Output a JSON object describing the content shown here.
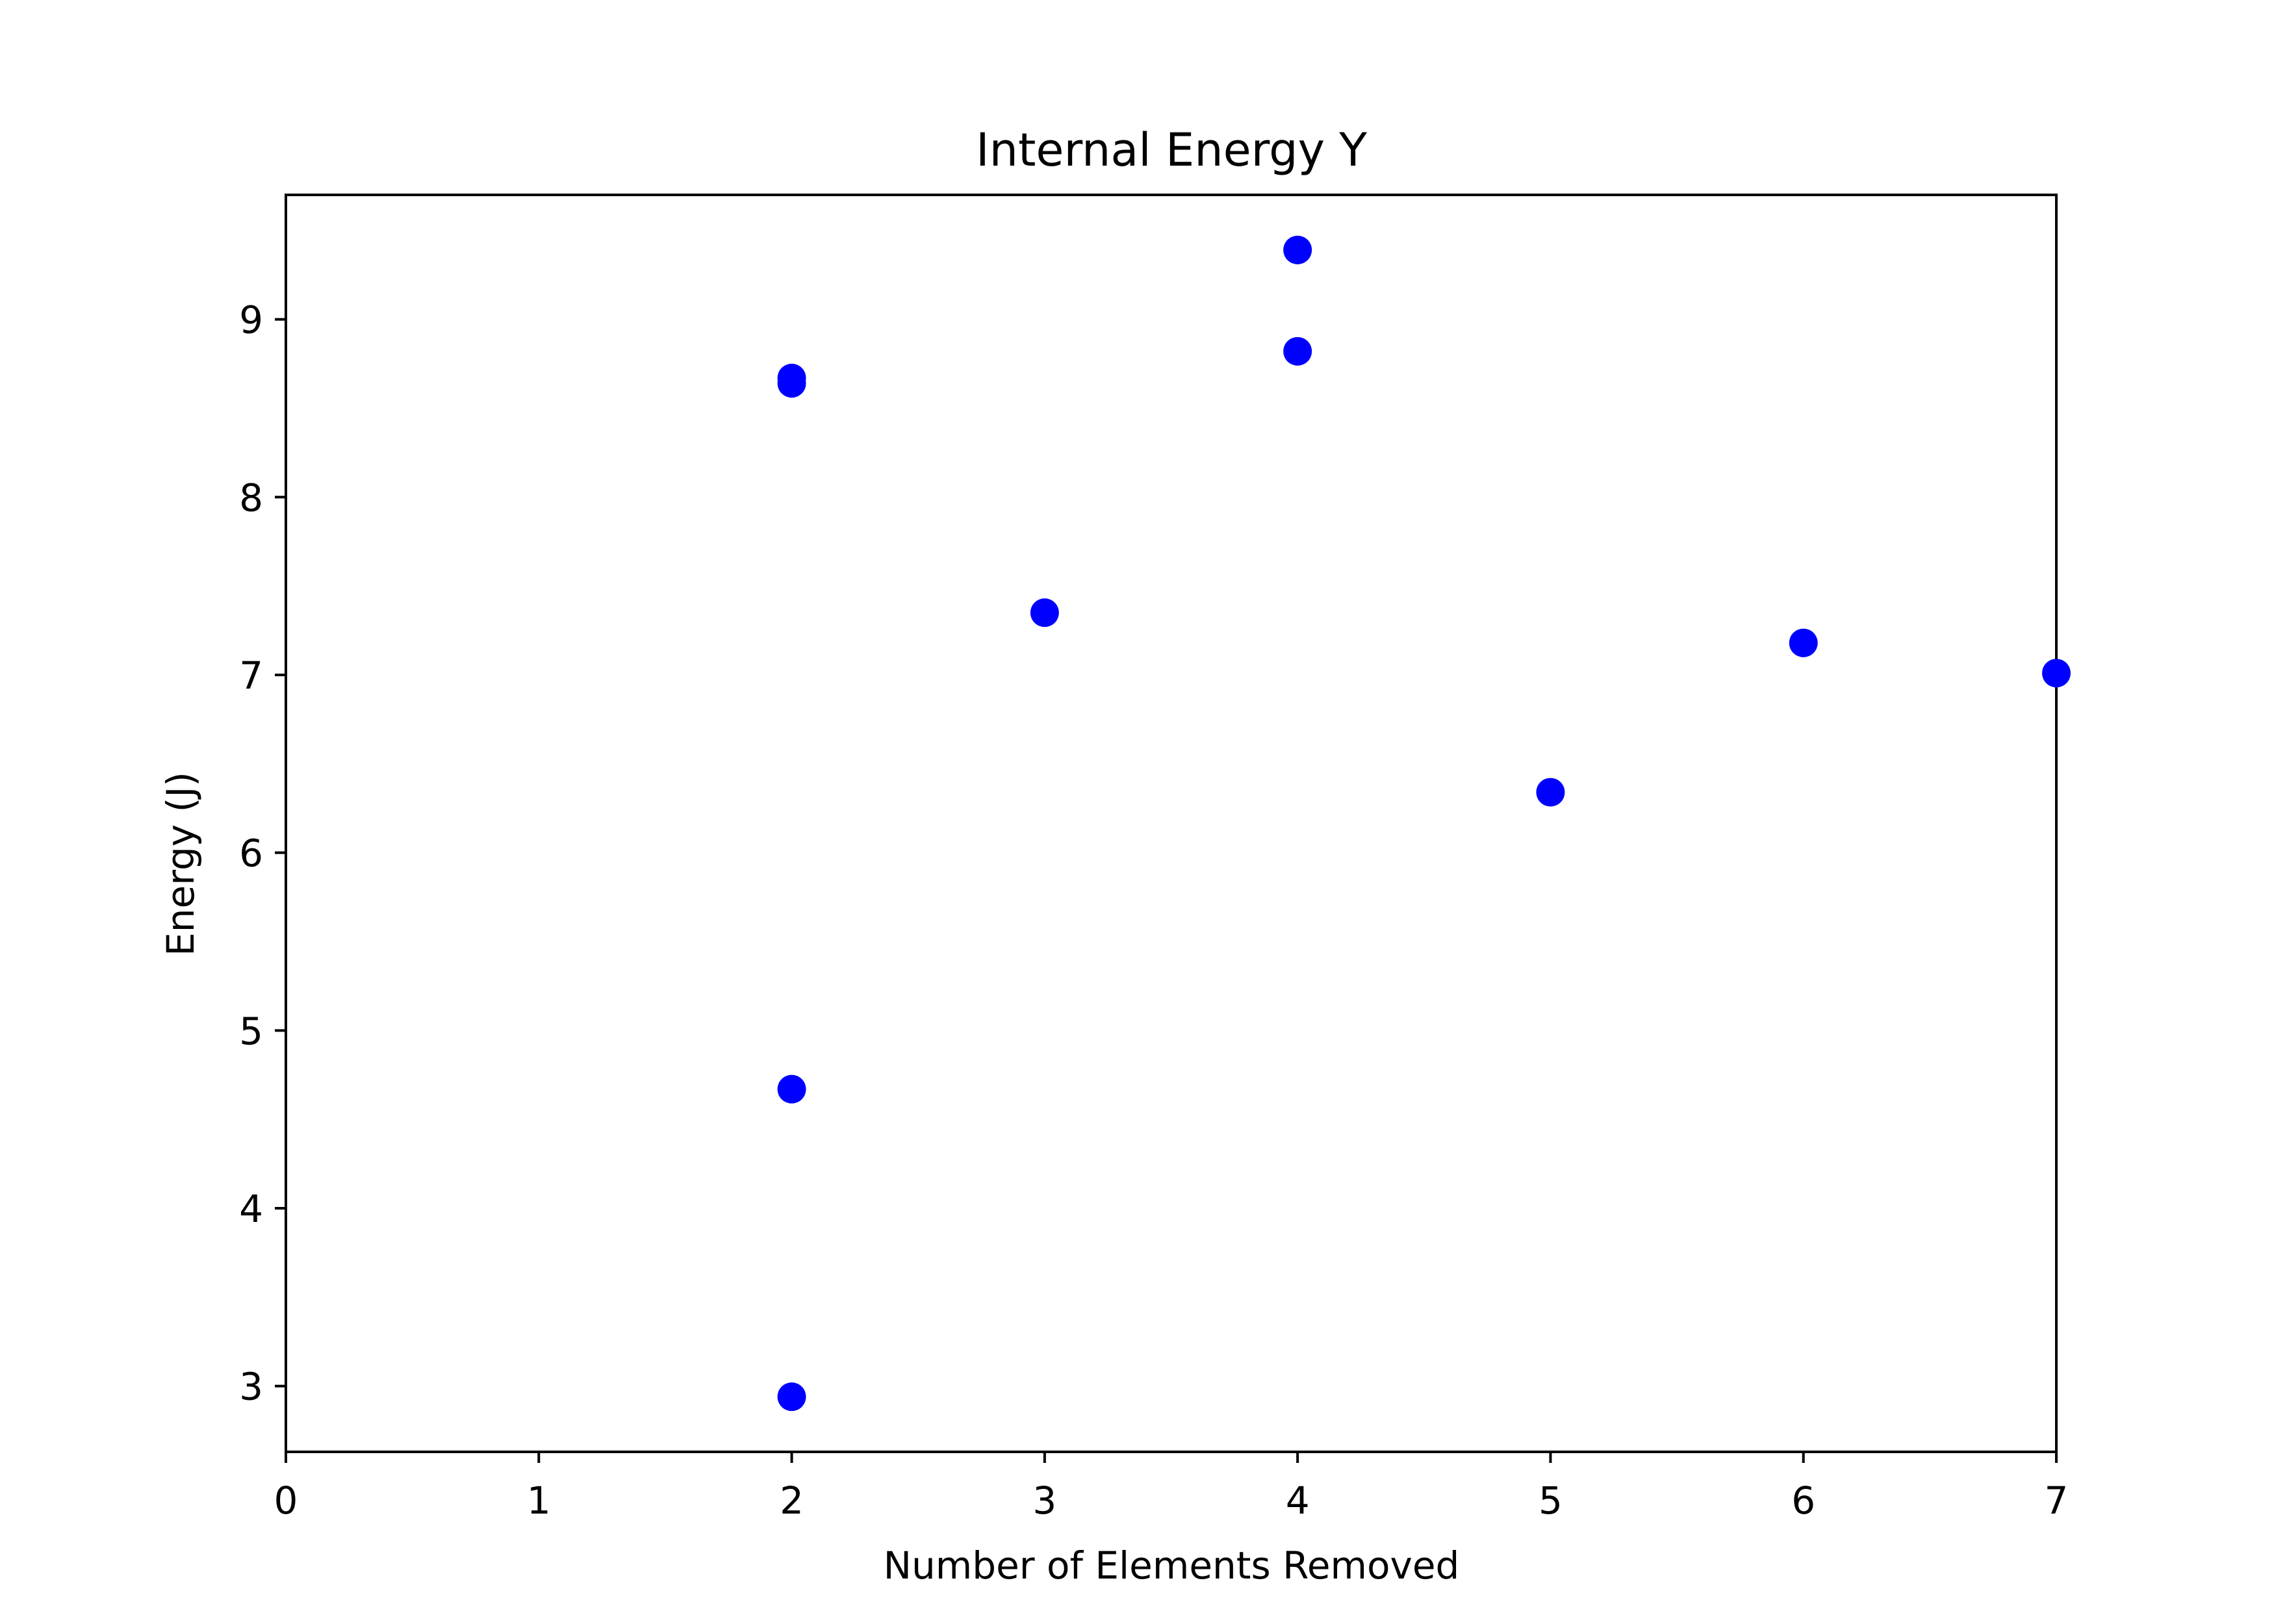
{
  "chart_data": {
    "type": "scatter",
    "title": "Internal Energy Y",
    "xlabel": "Number of Elements Removed",
    "ylabel": "Energy (J)",
    "xlim": [
      0,
      7
    ],
    "ylim": [
      2.63,
      9.7
    ],
    "xticks": [
      0,
      1,
      2,
      3,
      4,
      5,
      6,
      7
    ],
    "xtick_labels": [
      "0",
      "1",
      "2",
      "3",
      "4",
      "5",
      "6",
      "7"
    ],
    "yticks": [
      3,
      4,
      5,
      6,
      7,
      8,
      9
    ],
    "ytick_labels": [
      "3",
      "4",
      "5",
      "6",
      "7",
      "8",
      "9"
    ],
    "grid": false,
    "legend": "none",
    "series": [
      {
        "color": "#0000ff",
        "marker": "circle",
        "points": [
          {
            "x": 2,
            "y": 8.67
          },
          {
            "x": 2,
            "y": 8.64
          },
          {
            "x": 2,
            "y": 4.67
          },
          {
            "x": 2,
            "y": 2.94
          },
          {
            "x": 3,
            "y": 7.35
          },
          {
            "x": 4,
            "y": 9.39
          },
          {
            "x": 4,
            "y": 8.82
          },
          {
            "x": 5,
            "y": 6.34
          },
          {
            "x": 6,
            "y": 7.18
          },
          {
            "x": 7,
            "y": 7.01
          }
        ]
      }
    ]
  }
}
